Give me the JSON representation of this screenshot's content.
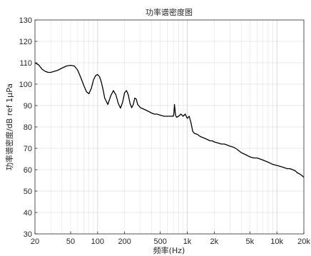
{
  "chart_data": {
    "type": "line",
    "title": "功率谱密度图",
    "xlabel": "频率(Hz)",
    "ylabel": "功率谱密度/dB ref 1μPa",
    "x_scale": "log",
    "xlim": [
      20,
      20000
    ],
    "ylim": [
      30,
      130
    ],
    "grid": true,
    "x_ticks": [
      20,
      50,
      100,
      200,
      500,
      1000,
      2000,
      5000,
      10000,
      20000
    ],
    "x_tick_labels": [
      "20",
      "50",
      "100",
      "200",
      "500",
      "1k",
      "2k",
      "5k",
      "10k",
      "20k"
    ],
    "y_ticks": [
      30,
      40,
      50,
      60,
      70,
      80,
      90,
      100,
      110,
      120,
      130
    ],
    "y_tick_labels": [
      "30",
      "40",
      "50",
      "60",
      "70",
      "80",
      "90",
      "100",
      "110",
      "120",
      "130"
    ],
    "series": [
      {
        "color": "#000000",
        "x": [
          20,
          22,
          24,
          26,
          28,
          30,
          33,
          36,
          40,
          45,
          50,
          55,
          60,
          65,
          70,
          75,
          80,
          85,
          90,
          95,
          100,
          105,
          110,
          115,
          120,
          130,
          140,
          150,
          160,
          170,
          180,
          190,
          200,
          210,
          220,
          230,
          240,
          250,
          260,
          270,
          280,
          300,
          320,
          340,
          360,
          380,
          400,
          430,
          460,
          500,
          550,
          600,
          650,
          700,
          710,
          720,
          730,
          740,
          760,
          800,
          850,
          900,
          950,
          1000,
          1050,
          1100,
          1150,
          1200,
          1300,
          1400,
          1500,
          1600,
          1700,
          1800,
          1900,
          2000,
          2200,
          2400,
          2600,
          2800,
          3000,
          3300,
          3600,
          4000,
          4500,
          5000,
          5500,
          6000,
          6500,
          7000,
          8000,
          9000,
          10000,
          11000,
          12000,
          13000,
          14000,
          15000,
          16000,
          17000,
          18000,
          19000,
          20000
        ],
        "y": [
          110,
          109,
          107,
          106,
          105.5,
          105.5,
          106,
          106.5,
          107.5,
          108.5,
          108.8,
          108.5,
          106.5,
          103,
          99.5,
          96.5,
          95.5,
          98,
          102,
          104,
          104.5,
          103.5,
          101,
          97.5,
          93.5,
          90.5,
          94.5,
          97,
          95,
          91,
          88.8,
          91.5,
          96,
          97,
          95,
          91,
          89,
          90.5,
          93.5,
          93,
          90.5,
          89,
          88.5,
          88,
          87.5,
          87,
          86.5,
          86,
          86,
          85.5,
          85,
          85,
          85,
          85,
          86.5,
          90.5,
          88,
          85.5,
          84.5,
          85,
          86,
          85,
          86,
          84,
          85,
          82,
          78,
          77,
          76.5,
          75.5,
          75,
          74.5,
          74,
          73.5,
          73.5,
          73,
          72.5,
          72,
          72,
          71.5,
          71,
          70.5,
          69.5,
          68,
          67,
          66,
          65.5,
          65.5,
          65,
          64.5,
          63.5,
          62.5,
          62,
          61.5,
          61,
          60.5,
          60.5,
          60,
          59.5,
          58.5,
          58,
          57.3,
          56.5
        ]
      }
    ]
  }
}
